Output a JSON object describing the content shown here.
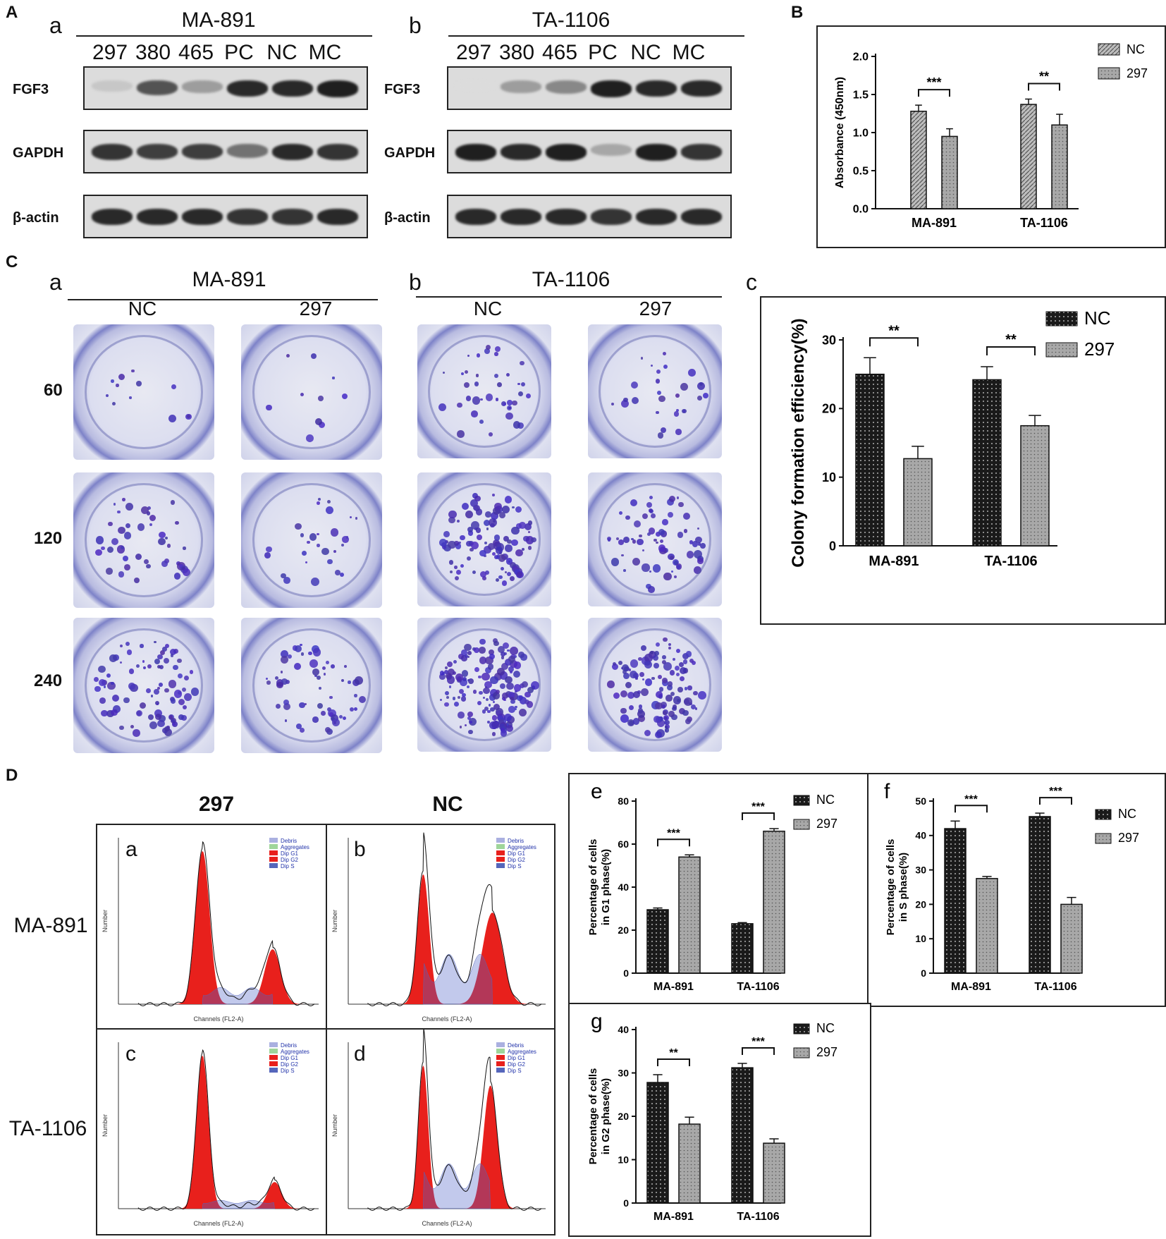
{
  "panels": {
    "A": "A",
    "B": "B",
    "C": "C",
    "D": "D"
  },
  "panelA": {
    "a": {
      "letter": "a",
      "cell": "MA-891",
      "lanes": [
        "297",
        "380",
        "465",
        "PC",
        "NC",
        "MC"
      ],
      "bands": [
        "FGF3",
        "GAPDH",
        "β-actin"
      ]
    },
    "b": {
      "letter": "b",
      "cell": "TA-1106",
      "lanes": [
        "297",
        "380",
        "465",
        "PC",
        "NC",
        "MC"
      ],
      "bands": [
        "FGF3",
        "GAPDH",
        "β-actin"
      ]
    }
  },
  "panelC": {
    "a": {
      "letter": "a",
      "cell": "MA-891",
      "cols": [
        "NC",
        "297"
      ]
    },
    "b": {
      "letter": "b",
      "cell": "TA-1106",
      "cols": [
        "NC",
        "297"
      ]
    },
    "c_letter": "c",
    "doses": [
      "60",
      "120",
      "240"
    ]
  },
  "panelD": {
    "cols": [
      "297",
      "NC"
    ],
    "rows": [
      "MA-891",
      "TA-1106"
    ],
    "flow": [
      {
        "letter": "a"
      },
      {
        "letter": "b"
      },
      {
        "letter": "c"
      },
      {
        "letter": "d"
      }
    ],
    "legend": [
      "Debris",
      "Aggregates",
      "Dip G1",
      "Dip G2",
      "Dip S"
    ],
    "flow_xlabel": "Channels (FL2-A)",
    "flow_ylabel": "Number"
  },
  "chart_data": [
    {
      "id": "B",
      "type": "bar",
      "categories": [
        "MA-891",
        "TA-1106"
      ],
      "series": [
        {
          "name": "NC",
          "values": [
            1.28,
            1.37
          ],
          "errors": [
            0.08,
            0.07
          ]
        },
        {
          "name": "297",
          "values": [
            0.95,
            1.1
          ],
          "errors": [
            0.1,
            0.14
          ]
        }
      ],
      "ylabel": "Absorbance (450nm)",
      "ylim": [
        0,
        2.0
      ],
      "yticks": [
        "0.0",
        "0.5",
        "1.0",
        "1.5",
        "2.0"
      ],
      "significance": [
        "***",
        "**"
      ],
      "legend": "top-right"
    },
    {
      "id": "Cc",
      "type": "bar",
      "categories": [
        "MA-891",
        "TA-1106"
      ],
      "series": [
        {
          "name": "NC",
          "values": [
            25.0,
            24.2
          ],
          "errors": [
            2.4,
            1.9
          ]
        },
        {
          "name": "297",
          "values": [
            12.7,
            17.5
          ],
          "errors": [
            1.8,
            1.5
          ]
        }
      ],
      "ylabel": "Colony formation efficiency(%)",
      "ylim": [
        0,
        30
      ],
      "yticks": [
        "0",
        "10",
        "20",
        "30"
      ],
      "significance": [
        "**",
        "**"
      ],
      "legend": "top-right"
    },
    {
      "id": "De",
      "type": "bar",
      "letter": "e",
      "categories": [
        "MA-891",
        "TA-1106"
      ],
      "series": [
        {
          "name": "NC",
          "values": [
            29.5,
            23.0
          ],
          "errors": [
            0.8,
            0.5
          ]
        },
        {
          "name": "297",
          "values": [
            54.0,
            66.0
          ],
          "errors": [
            1.0,
            1.2
          ]
        }
      ],
      "ylabel": "Percentage of cells in G1 phase(%)",
      "ylabel_lines": [
        "Percentage of cells",
        "in G1 phase(%)"
      ],
      "ylim": [
        0,
        80
      ],
      "yticks": [
        "0",
        "20",
        "40",
        "60",
        "80"
      ],
      "significance": [
        "***",
        "***"
      ],
      "legend": "top-right"
    },
    {
      "id": "Df",
      "type": "bar",
      "letter": "f",
      "categories": [
        "MA-891",
        "TA-1106"
      ],
      "series": [
        {
          "name": "NC",
          "values": [
            42.0,
            45.5
          ],
          "errors": [
            2.2,
            1.0
          ]
        },
        {
          "name": "297",
          "values": [
            27.5,
            20.0
          ],
          "errors": [
            0.6,
            2.0
          ]
        }
      ],
      "ylabel": "Percentage of cells in S phase(%)",
      "ylabel_lines": [
        "Percentage of cells",
        "in S phase(%)"
      ],
      "ylim": [
        0,
        50
      ],
      "yticks": [
        "0",
        "10",
        "20",
        "30",
        "40",
        "50"
      ],
      "significance": [
        "***",
        "***"
      ],
      "legend": "top-right"
    },
    {
      "id": "Dg",
      "type": "bar",
      "letter": "g",
      "categories": [
        "MA-891",
        "TA-1106"
      ],
      "series": [
        {
          "name": "NC",
          "values": [
            27.8,
            31.2
          ],
          "errors": [
            1.8,
            1.0
          ]
        },
        {
          "name": "297",
          "values": [
            18.2,
            13.8
          ],
          "errors": [
            1.6,
            1.0
          ]
        }
      ],
      "ylabel": "Percentage of cells in G2 phase(%)",
      "ylabel_lines": [
        "Percentage of cells",
        "in G2 phase(%)"
      ],
      "ylim": [
        0,
        40
      ],
      "yticks": [
        "0",
        "10",
        "20",
        "30",
        "40"
      ],
      "significance": [
        "**",
        "***"
      ],
      "legend": "top-right"
    }
  ]
}
